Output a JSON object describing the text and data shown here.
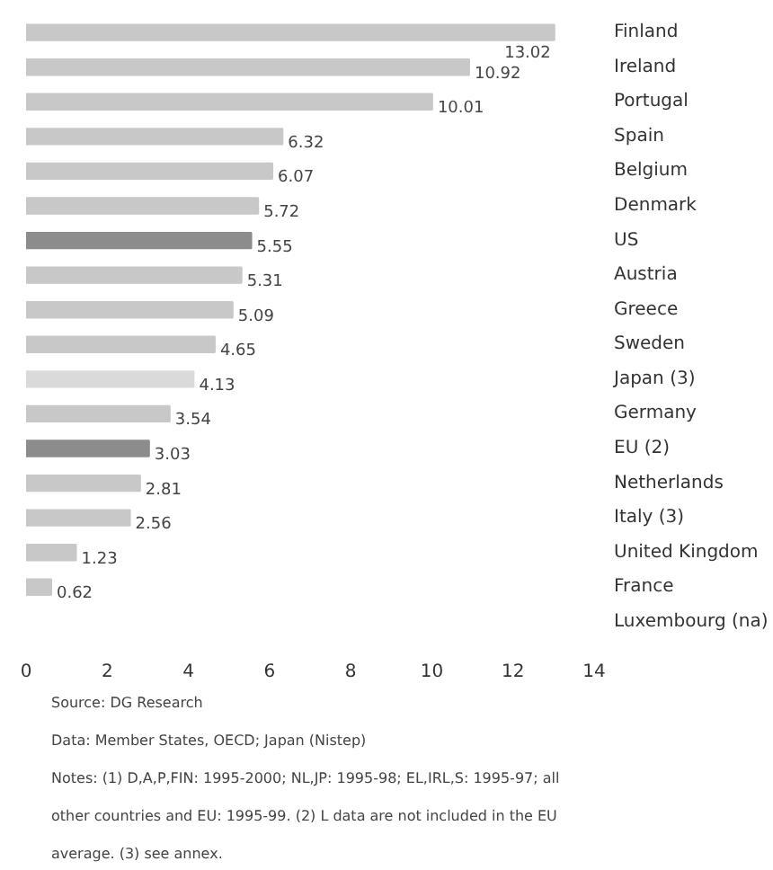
{
  "chart_data": {
    "type": "bar",
    "orientation": "horizontal",
    "categories": [
      "Finland",
      "Ireland",
      "Portugal",
      "Spain",
      "Belgium",
      "Denmark",
      "US",
      "Austria",
      "Greece",
      "Sweden",
      "Japan (3)",
      "Germany",
      "EU (2)",
      "Netherlands",
      "Italy (3)",
      "United Kingdom",
      "France",
      "Luxembourg (na)"
    ],
    "values": [
      13.02,
      10.92,
      10.01,
      6.32,
      6.07,
      5.72,
      5.55,
      5.31,
      5.09,
      4.65,
      4.13,
      3.54,
      3.03,
      2.81,
      2.56,
      1.23,
      0.62,
      null
    ],
    "colors": [
      "#c8c8c8",
      "#c8c8c8",
      "#c8c8c8",
      "#c8c8c8",
      "#c8c8c8",
      "#c8c8c8",
      "#8c8c8c",
      "#c8c8c8",
      "#c8c8c8",
      "#c8c8c8",
      "#dadada",
      "#c8c8c8",
      "#8c8c8c",
      "#c8c8c8",
      "#c8c8c8",
      "#c8c8c8",
      "#c8c8c8",
      "#c8c8c8"
    ],
    "xlim": [
      0,
      14
    ],
    "xticks": [
      0,
      2,
      4,
      6,
      8,
      10,
      12,
      14
    ],
    "data_labels": true,
    "grid": false,
    "annotations": [
      "Source: DG Research",
      "Data: Member States, OECD; Japan (Nistep)",
      "Notes: (1) D,A,P,FIN: 1995-2000; NL,JP: 1995-98; EL,IRL,S: 1995-97; all other countries and EU: 1995-99. (2) L data are not included in the EU average. (3) see annex."
    ]
  }
}
